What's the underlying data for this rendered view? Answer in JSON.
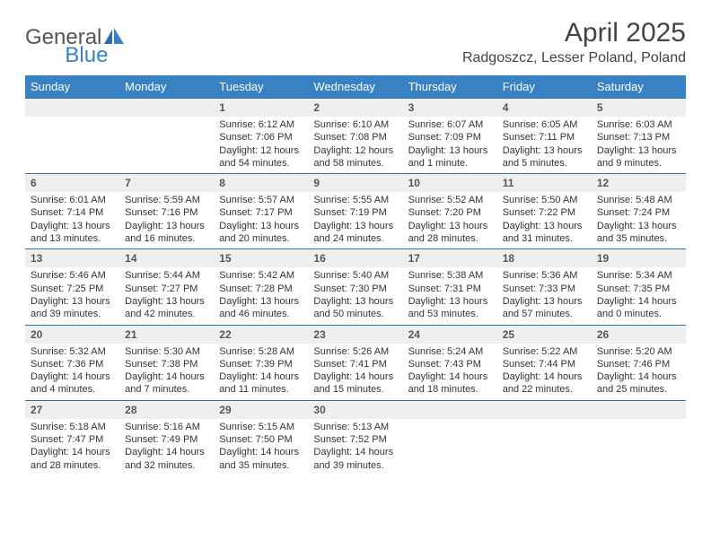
{
  "logo": {
    "general": "General",
    "blue": "Blue"
  },
  "title": "April 2025",
  "location": "Radgoszcz, Lesser Poland, Poland",
  "colors": {
    "header_bg": "#3882c4",
    "header_fg": "#ffffff",
    "row_border": "#3173ad",
    "daynum_bg": "#efefef",
    "text": "#333333",
    "logo_gray": "#555555",
    "logo_blue": "#3882c4"
  },
  "weekdays": [
    "Sunday",
    "Monday",
    "Tuesday",
    "Wednesday",
    "Thursday",
    "Friday",
    "Saturday"
  ],
  "weeks": [
    [
      null,
      null,
      {
        "n": "1",
        "sr": "Sunrise: 6:12 AM",
        "ss": "Sunset: 7:06 PM",
        "dl": "Daylight: 12 hours and 54 minutes."
      },
      {
        "n": "2",
        "sr": "Sunrise: 6:10 AM",
        "ss": "Sunset: 7:08 PM",
        "dl": "Daylight: 12 hours and 58 minutes."
      },
      {
        "n": "3",
        "sr": "Sunrise: 6:07 AM",
        "ss": "Sunset: 7:09 PM",
        "dl": "Daylight: 13 hours and 1 minute."
      },
      {
        "n": "4",
        "sr": "Sunrise: 6:05 AM",
        "ss": "Sunset: 7:11 PM",
        "dl": "Daylight: 13 hours and 5 minutes."
      },
      {
        "n": "5",
        "sr": "Sunrise: 6:03 AM",
        "ss": "Sunset: 7:13 PM",
        "dl": "Daylight: 13 hours and 9 minutes."
      }
    ],
    [
      {
        "n": "6",
        "sr": "Sunrise: 6:01 AM",
        "ss": "Sunset: 7:14 PM",
        "dl": "Daylight: 13 hours and 13 minutes."
      },
      {
        "n": "7",
        "sr": "Sunrise: 5:59 AM",
        "ss": "Sunset: 7:16 PM",
        "dl": "Daylight: 13 hours and 16 minutes."
      },
      {
        "n": "8",
        "sr": "Sunrise: 5:57 AM",
        "ss": "Sunset: 7:17 PM",
        "dl": "Daylight: 13 hours and 20 minutes."
      },
      {
        "n": "9",
        "sr": "Sunrise: 5:55 AM",
        "ss": "Sunset: 7:19 PM",
        "dl": "Daylight: 13 hours and 24 minutes."
      },
      {
        "n": "10",
        "sr": "Sunrise: 5:52 AM",
        "ss": "Sunset: 7:20 PM",
        "dl": "Daylight: 13 hours and 28 minutes."
      },
      {
        "n": "11",
        "sr": "Sunrise: 5:50 AM",
        "ss": "Sunset: 7:22 PM",
        "dl": "Daylight: 13 hours and 31 minutes."
      },
      {
        "n": "12",
        "sr": "Sunrise: 5:48 AM",
        "ss": "Sunset: 7:24 PM",
        "dl": "Daylight: 13 hours and 35 minutes."
      }
    ],
    [
      {
        "n": "13",
        "sr": "Sunrise: 5:46 AM",
        "ss": "Sunset: 7:25 PM",
        "dl": "Daylight: 13 hours and 39 minutes."
      },
      {
        "n": "14",
        "sr": "Sunrise: 5:44 AM",
        "ss": "Sunset: 7:27 PM",
        "dl": "Daylight: 13 hours and 42 minutes."
      },
      {
        "n": "15",
        "sr": "Sunrise: 5:42 AM",
        "ss": "Sunset: 7:28 PM",
        "dl": "Daylight: 13 hours and 46 minutes."
      },
      {
        "n": "16",
        "sr": "Sunrise: 5:40 AM",
        "ss": "Sunset: 7:30 PM",
        "dl": "Daylight: 13 hours and 50 minutes."
      },
      {
        "n": "17",
        "sr": "Sunrise: 5:38 AM",
        "ss": "Sunset: 7:31 PM",
        "dl": "Daylight: 13 hours and 53 minutes."
      },
      {
        "n": "18",
        "sr": "Sunrise: 5:36 AM",
        "ss": "Sunset: 7:33 PM",
        "dl": "Daylight: 13 hours and 57 minutes."
      },
      {
        "n": "19",
        "sr": "Sunrise: 5:34 AM",
        "ss": "Sunset: 7:35 PM",
        "dl": "Daylight: 14 hours and 0 minutes."
      }
    ],
    [
      {
        "n": "20",
        "sr": "Sunrise: 5:32 AM",
        "ss": "Sunset: 7:36 PM",
        "dl": "Daylight: 14 hours and 4 minutes."
      },
      {
        "n": "21",
        "sr": "Sunrise: 5:30 AM",
        "ss": "Sunset: 7:38 PM",
        "dl": "Daylight: 14 hours and 7 minutes."
      },
      {
        "n": "22",
        "sr": "Sunrise: 5:28 AM",
        "ss": "Sunset: 7:39 PM",
        "dl": "Daylight: 14 hours and 11 minutes."
      },
      {
        "n": "23",
        "sr": "Sunrise: 5:26 AM",
        "ss": "Sunset: 7:41 PM",
        "dl": "Daylight: 14 hours and 15 minutes."
      },
      {
        "n": "24",
        "sr": "Sunrise: 5:24 AM",
        "ss": "Sunset: 7:43 PM",
        "dl": "Daylight: 14 hours and 18 minutes."
      },
      {
        "n": "25",
        "sr": "Sunrise: 5:22 AM",
        "ss": "Sunset: 7:44 PM",
        "dl": "Daylight: 14 hours and 22 minutes."
      },
      {
        "n": "26",
        "sr": "Sunrise: 5:20 AM",
        "ss": "Sunset: 7:46 PM",
        "dl": "Daylight: 14 hours and 25 minutes."
      }
    ],
    [
      {
        "n": "27",
        "sr": "Sunrise: 5:18 AM",
        "ss": "Sunset: 7:47 PM",
        "dl": "Daylight: 14 hours and 28 minutes."
      },
      {
        "n": "28",
        "sr": "Sunrise: 5:16 AM",
        "ss": "Sunset: 7:49 PM",
        "dl": "Daylight: 14 hours and 32 minutes."
      },
      {
        "n": "29",
        "sr": "Sunrise: 5:15 AM",
        "ss": "Sunset: 7:50 PM",
        "dl": "Daylight: 14 hours and 35 minutes."
      },
      {
        "n": "30",
        "sr": "Sunrise: 5:13 AM",
        "ss": "Sunset: 7:52 PM",
        "dl": "Daylight: 14 hours and 39 minutes."
      },
      null,
      null,
      null
    ]
  ]
}
